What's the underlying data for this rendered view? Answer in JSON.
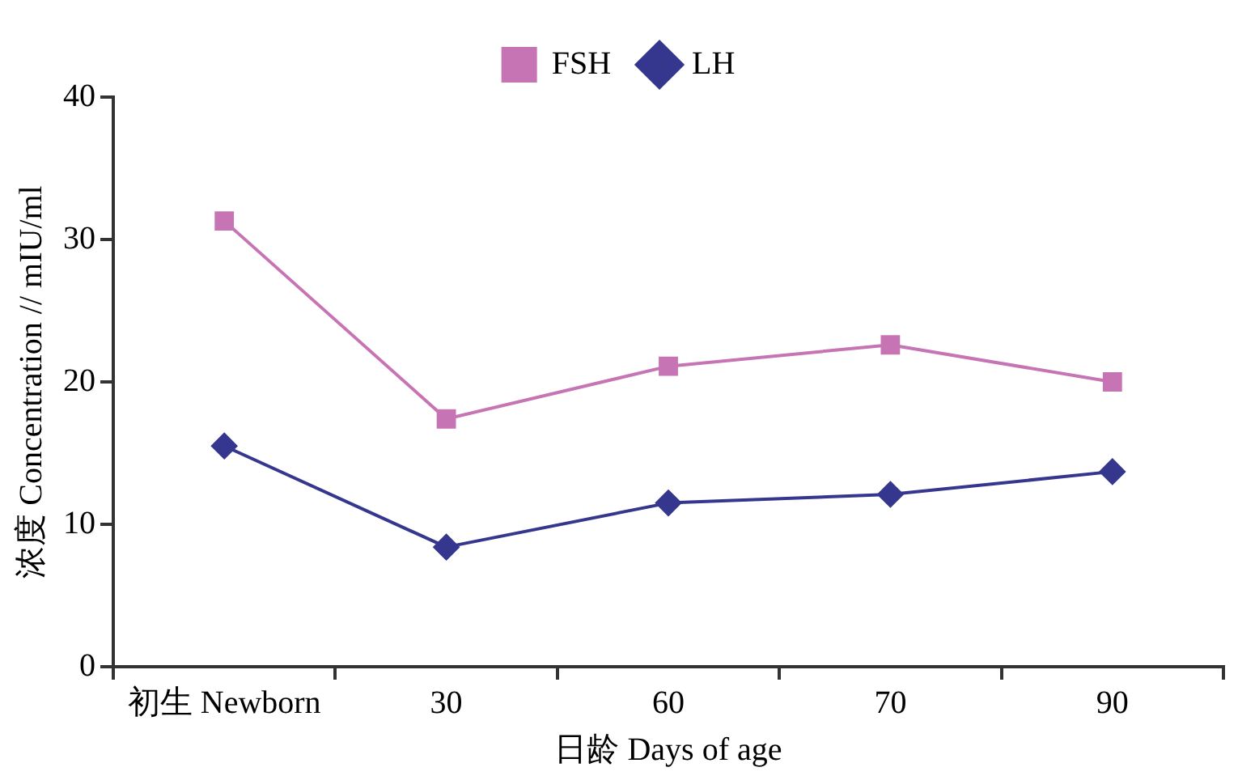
{
  "chart_data": {
    "type": "line",
    "xlabel": "日龄 Days of age",
    "ylabel": "浓度 Concentration // mIU/ml",
    "categories": [
      "初生 Newborn",
      "30",
      "60",
      "70",
      "90"
    ],
    "ylim": [
      0,
      40
    ],
    "yticks": [
      0,
      10,
      20,
      30,
      40
    ],
    "grid": false,
    "legend": "top",
    "line_style": "solid",
    "series": [
      {
        "name": "FSH",
        "color": "#c774b4",
        "marker": "square",
        "values": [
          31.3,
          17.4,
          21.1,
          22.6,
          20.0
        ]
      },
      {
        "name": "LH",
        "color": "#35378f",
        "marker": "diamond",
        "values": [
          15.5,
          8.4,
          11.5,
          12.1,
          13.7
        ]
      }
    ]
  }
}
